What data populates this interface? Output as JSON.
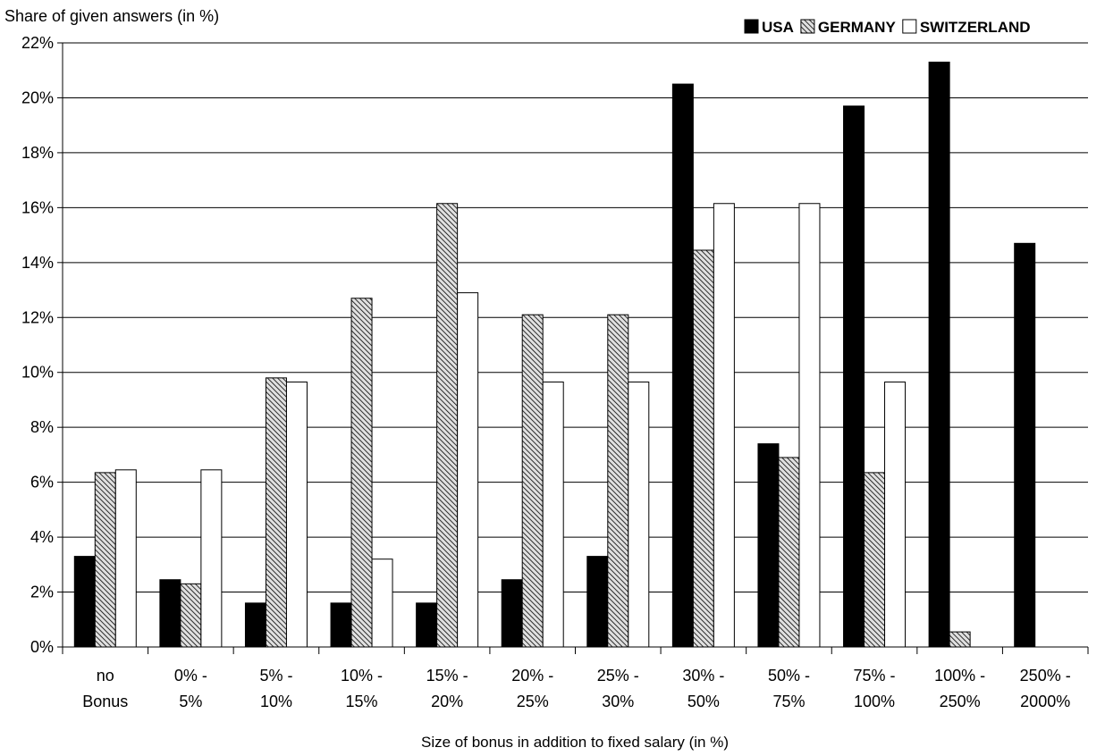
{
  "chart_data": {
    "type": "bar",
    "ylabel": "Share of given answers (in %)",
    "xlabel": "Size of bonus in addition to fixed salary (in %)",
    "ylim": [
      0,
      22
    ],
    "yticks": [
      0,
      2,
      4,
      6,
      8,
      10,
      12,
      14,
      16,
      18,
      20,
      22
    ],
    "ytick_labels": [
      "0%",
      "2%",
      "4%",
      "6%",
      "8%",
      "10%",
      "12%",
      "14%",
      "16%",
      "18%",
      "20%",
      "22%"
    ],
    "grid": true,
    "legend_position": "top-right",
    "categories": [
      [
        "no",
        "Bonus"
      ],
      [
        "0% -",
        "5%"
      ],
      [
        "5% -",
        "10%"
      ],
      [
        "10% -",
        "15%"
      ],
      [
        "15% -",
        "20%"
      ],
      [
        "20% -",
        "25%"
      ],
      [
        "25% -",
        "30%"
      ],
      [
        "30% -",
        "50%"
      ],
      [
        "50% -",
        "75%"
      ],
      [
        "75% -",
        "100%"
      ],
      [
        "100% -",
        "250%"
      ],
      [
        "250% -",
        "2000%"
      ]
    ],
    "series": [
      {
        "name": "USA",
        "color": "#000000",
        "pattern": "solid",
        "values": [
          3.3,
          2.45,
          1.6,
          1.6,
          1.6,
          2.45,
          3.3,
          20.5,
          7.4,
          19.7,
          21.3,
          14.7
        ]
      },
      {
        "name": "GERMANY",
        "color": "#bfbfbf",
        "pattern": "hatched",
        "values": [
          6.35,
          2.3,
          9.8,
          12.7,
          16.15,
          12.1,
          12.1,
          14.45,
          6.9,
          6.35,
          0.55,
          0
        ]
      },
      {
        "name": "SWITZERLAND",
        "color": "#ffffff",
        "pattern": "solid",
        "values": [
          6.45,
          6.45,
          9.65,
          3.2,
          12.9,
          9.65,
          9.65,
          16.15,
          16.15,
          9.65,
          0,
          0
        ]
      }
    ]
  }
}
